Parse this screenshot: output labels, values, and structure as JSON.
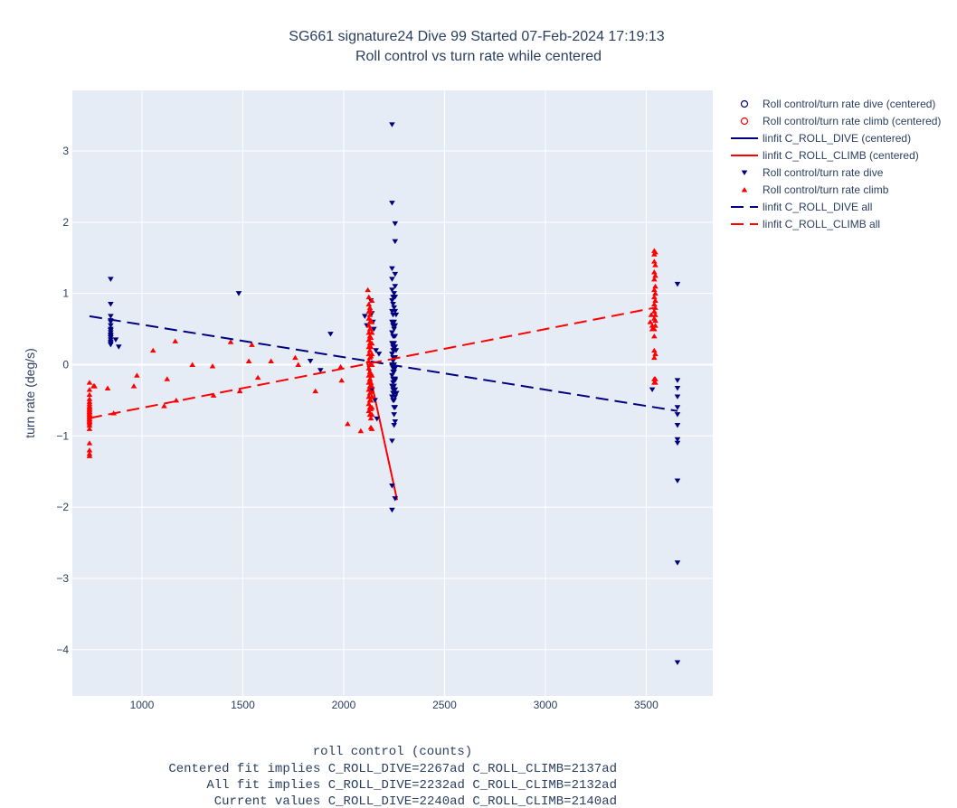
{
  "chart_data": {
    "type": "scatter",
    "title": "SG661 signature24 Dive 99 Started 07-Feb-2024 17:19:13",
    "subtitle": "Roll control vs turn rate while centered",
    "xlabel": "roll control (counts)",
    "ylabel": "turn rate (deg/s)",
    "footer_lines": [
      "Centered fit implies C_ROLL_DIVE=2267ad C_ROLL_CLIMB=2137ad",
      "All fit implies C_ROLL_DIVE=2232ad C_ROLL_CLIMB=2132ad",
      "Current values C_ROLL_DIVE=2240ad C_ROLL_CLIMB=2140ad"
    ],
    "xlim": [
      655,
      3830
    ],
    "ylim": [
      -4.65,
      3.85
    ],
    "xticks": [
      1000,
      1500,
      2000,
      2500,
      3000,
      3500
    ],
    "yticks": [
      -4,
      -3,
      -2,
      -1,
      0,
      1,
      2,
      3
    ],
    "xtick_labels": [
      "1000",
      "1500",
      "2000",
      "2500",
      "3000",
      "3500"
    ],
    "ytick_labels": [
      "−4",
      "−3",
      "−2",
      "−1",
      "0",
      "1",
      "2",
      "3"
    ],
    "grid": true,
    "legend_position": "right",
    "colors": {
      "dive": "#00007f",
      "climb": "#ff0000",
      "plot_bg": "#e5ecf6",
      "grid": "#ffffff"
    },
    "legend": [
      {
        "label": "Roll control/turn rate dive (centered)",
        "symbol": "circle-open",
        "color": "#00007f"
      },
      {
        "label": "Roll control/turn rate climb (centered)",
        "symbol": "circle-open",
        "color": "#ff0000"
      },
      {
        "label": "linfit C_ROLL_DIVE (centered)",
        "symbol": "line-solid",
        "color": "#00007f"
      },
      {
        "label": "linfit C_ROLL_CLIMB (centered)",
        "symbol": "line-solid",
        "color": "#ff0000"
      },
      {
        "label": "Roll control/turn rate dive",
        "symbol": "triangle-down",
        "color": "#00007f"
      },
      {
        "label": "Roll control/turn rate climb",
        "symbol": "triangle-up",
        "color": "#ff0000"
      },
      {
        "label": "linfit C_ROLL_DIVE all",
        "symbol": "line-dash",
        "color": "#00007f"
      },
      {
        "label": "linfit C_ROLL_CLIMB all",
        "symbol": "line-dash",
        "color": "#ff0000"
      }
    ],
    "series": [
      {
        "name": "linfit C_ROLL_DIVE (centered)",
        "kind": "line-solid",
        "color": "#00007f",
        "x": [
          2270,
          2270
        ],
        "y": [
          -1.9,
          -1.9
        ]
      },
      {
        "name": "linfit C_ROLL_CLIMB (centered)",
        "kind": "line-solid",
        "color": "#ff0000",
        "x": [
          2115,
          2265
        ],
        "y": [
          0.05,
          -1.9
        ]
      },
      {
        "name": "Roll control/turn rate dive",
        "kind": "triangle-down",
        "color": "#00007f",
        "x": [
          845,
          845,
          845,
          845,
          845,
          845,
          845,
          845,
          845,
          845,
          845,
          845,
          845,
          845,
          845,
          845,
          870,
          885,
          1480,
          1835,
          1885,
          1935,
          2105,
          2115,
          2135,
          2140,
          2140,
          2145,
          2150,
          2155,
          2160,
          2165,
          2175,
          2240,
          2240,
          2240,
          2240,
          2240,
          2240,
          2240,
          2240,
          2240,
          2240,
          2240,
          2240,
          2240,
          2240,
          2240,
          2240,
          2240,
          2240,
          2245,
          2245,
          2245,
          2245,
          2245,
          2245,
          2245,
          2245,
          2245,
          2245,
          2245,
          2245,
          2245,
          2245,
          2245,
          2245,
          2245,
          2250,
          2250,
          2250,
          2250,
          2250,
          2250,
          2250,
          2250,
          2250,
          2250,
          2250,
          2250,
          2250,
          2250,
          2250,
          2250,
          2250,
          2255,
          2255,
          2255,
          2255,
          2255,
          2255,
          2255,
          2255,
          2255,
          2255,
          2255,
          2255,
          2255,
          2255,
          2255,
          2255,
          2255,
          2255,
          2260,
          2260,
          2262,
          3530,
          3655,
          3655,
          3655,
          3655,
          3655,
          3655,
          3655,
          3655,
          3655,
          3655,
          3655,
          3655
        ],
        "y": [
          1.2,
          0.85,
          0.68,
          0.62,
          0.6,
          0.55,
          0.5,
          0.48,
          0.45,
          0.42,
          0.4,
          0.38,
          0.35,
          0.32,
          0.3,
          0.28,
          0.35,
          0.25,
          1.0,
          0.05,
          -0.08,
          0.43,
          0.68,
          0.55,
          0.9,
          0.72,
          -0.35,
          0.6,
          0.5,
          -0.5,
          0.2,
          -0.76,
          0.15,
          3.37,
          2.27,
          1.35,
          1.2,
          1.05,
          0.9,
          0.75,
          0.6,
          0.45,
          0.3,
          0.15,
          0.0,
          -0.15,
          -0.3,
          -0.45,
          -1.07,
          -1.7,
          -2.04,
          0.85,
          0.7,
          0.55,
          0.4,
          0.25,
          0.1,
          -0.05,
          -0.2,
          -0.35,
          -0.5,
          0.95,
          0.3,
          0.2,
          0.05,
          -0.1,
          -0.25,
          -0.4,
          1.0,
          0.8,
          0.6,
          0.5,
          0.4,
          0.3,
          0.2,
          0.1,
          0.0,
          -0.1,
          -0.2,
          -0.3,
          -0.4,
          -0.5,
          -0.6,
          -0.7,
          -0.85,
          1.98,
          1.73,
          1.27,
          1.1,
          0.95,
          0.75,
          0.55,
          0.4,
          0.25,
          0.1,
          -0.05,
          -0.2,
          -0.35,
          -0.45,
          -0.6,
          -0.8,
          -1.88,
          -0.22,
          0.7,
          0.2,
          -0.4,
          -0.35,
          1.13,
          -0.22,
          -0.33,
          -0.45,
          -0.6,
          -0.7,
          -0.85,
          -1.05,
          -1.1,
          -1.63,
          -2.78,
          -4.18
        ]
      },
      {
        "name": "Roll control/turn rate climb",
        "kind": "triangle-up",
        "color": "#ff0000",
        "x": [
          740,
          740,
          740,
          740,
          740,
          740,
          740,
          740,
          740,
          740,
          740,
          740,
          740,
          740,
          740,
          740,
          740,
          740,
          740,
          740,
          740,
          740,
          740,
          740,
          740,
          760,
          765,
          830,
          860,
          960,
          975,
          1055,
          1110,
          1125,
          1165,
          1170,
          1250,
          1350,
          1355,
          1440,
          1485,
          1530,
          1545,
          1575,
          1640,
          1760,
          1775,
          1860,
          1985,
          1990,
          2020,
          2085,
          2120,
          2125,
          2125,
          2125,
          2125,
          2125,
          2125,
          2125,
          2125,
          2125,
          2125,
          2125,
          2125,
          2125,
          2125,
          2125,
          2125,
          2125,
          2130,
          2130,
          2130,
          2130,
          2130,
          2130,
          2130,
          2130,
          2130,
          2130,
          2130,
          2130,
          2130,
          2130,
          2130,
          2130,
          2135,
          2135,
          2135,
          2135,
          2135,
          2135,
          2135,
          2135,
          2135,
          2135,
          2135,
          2135,
          2135,
          2135,
          2140,
          2140,
          2140,
          2140,
          2140,
          2140,
          2140,
          2140,
          2140,
          2140,
          2140,
          2140,
          3520,
          3525,
          3530,
          3530,
          3540,
          3540,
          3540,
          3540,
          3540,
          3540,
          3540,
          3540,
          3540,
          3540,
          3540,
          3540,
          3540,
          3540,
          3540,
          3540,
          3545,
          3545,
          3545,
          3545,
          3545,
          3545,
          3545,
          3545,
          3545,
          3545,
          3545,
          3545,
          3545
        ],
        "y": [
          -0.25,
          -0.35,
          -0.42,
          -0.48,
          -0.52,
          -0.55,
          -0.58,
          -0.6,
          -0.62,
          -0.64,
          -0.66,
          -0.68,
          -0.7,
          -0.72,
          -0.74,
          -0.76,
          -0.78,
          -0.8,
          -0.82,
          -0.85,
          -0.9,
          -1.1,
          -1.2,
          -1.25,
          -1.28,
          -0.3,
          -0.3,
          -0.33,
          -0.68,
          -0.3,
          -0.15,
          0.2,
          -0.58,
          -0.2,
          0.33,
          -0.5,
          0.0,
          -0.02,
          -0.43,
          0.32,
          -0.37,
          0.05,
          0.28,
          -0.18,
          0.05,
          0.1,
          0.0,
          -0.37,
          -0.03,
          -0.22,
          -0.83,
          -0.93,
          1.05,
          0.95,
          0.85,
          0.75,
          0.65,
          0.55,
          0.45,
          0.35,
          0.25,
          0.15,
          0.05,
          -0.05,
          -0.15,
          -0.25,
          -0.35,
          -0.45,
          -0.55,
          -0.65,
          0.8,
          0.7,
          0.6,
          0.5,
          0.4,
          0.3,
          0.2,
          0.1,
          0.0,
          -0.1,
          -0.2,
          -0.3,
          -0.4,
          -0.5,
          -0.6,
          -0.7,
          0.75,
          0.62,
          0.5,
          0.38,
          0.25,
          0.12,
          0.0,
          -0.12,
          -0.25,
          -0.38,
          -0.5,
          -0.62,
          -0.75,
          -0.88,
          0.6,
          0.45,
          0.3,
          0.15,
          0.0,
          -0.15,
          -0.3,
          -0.45,
          -0.6,
          0.9,
          -0.7,
          -0.9,
          0.6,
          0.7,
          0.55,
          0.5,
          1.6,
          1.55,
          1.45,
          1.3,
          1.2,
          1.05,
          0.95,
          0.85,
          0.75,
          0.65,
          0.5,
          0.4,
          0.2,
          0.1,
          -0.2,
          -0.25,
          1.58,
          1.4,
          1.25,
          1.1,
          1.0,
          0.9,
          0.8,
          0.7,
          0.62,
          0.55,
          0.15,
          -0.2,
          -0.25
        ]
      },
      {
        "name": "linfit C_ROLL_DIVE all",
        "kind": "line-dash",
        "color": "#00007f",
        "x": [
          740,
          3655
        ],
        "y": [
          0.68,
          -0.65
        ]
      },
      {
        "name": "linfit C_ROLL_CLIMB all",
        "kind": "line-dash",
        "color": "#ff0000",
        "x": [
          740,
          3545
        ],
        "y": [
          -0.75,
          0.8
        ]
      }
    ]
  }
}
